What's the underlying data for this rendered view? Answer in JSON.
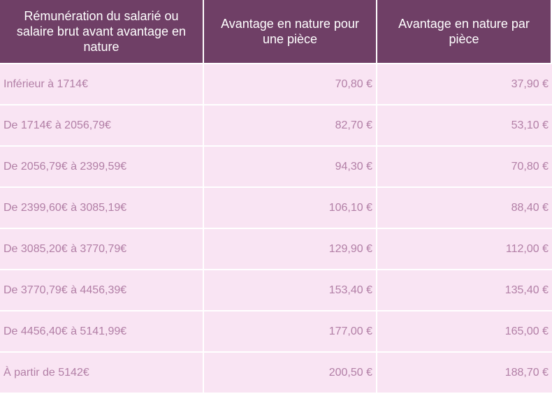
{
  "header": [
    "Rémunération du salarié ou salaire brut avant avantage en nature",
    "Avantage en nature pour une pièce",
    "Avantage en nature par pièce"
  ],
  "rows": [
    [
      "Inférieur à 1714€",
      "70,80 €",
      "37,90 €"
    ],
    [
      "De 1714€ à 2056,79€",
      "82,70 €",
      "53,10 €"
    ],
    [
      "De 2056,79€ à 2399,59€",
      "94,30 €",
      "70,80 €"
    ],
    [
      "De 2399,60€ à 3085,19€",
      "106,10 €",
      "88,40 €"
    ],
    [
      "De 3085,20€ à 3770,79€",
      "129,90 €",
      "112,00 €"
    ],
    [
      "De 3770,79€ à 4456,39€",
      "153,40 €",
      "135,40 €"
    ],
    [
      "De 4456,40€ à 5141,99€",
      "177,00 €",
      "165,00 €"
    ],
    [
      "À partir de 5142€",
      "200,50 €",
      "188,70 €"
    ]
  ],
  "colors": {
    "header_bg": "#6f3f66",
    "row_bg": "#f9e4f3",
    "row_text": "#b27fa6"
  }
}
